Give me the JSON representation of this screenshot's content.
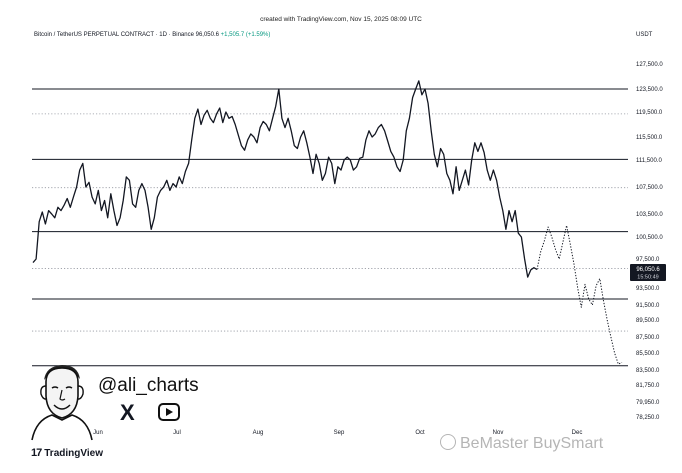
{
  "header": {
    "created_text": "created with TradingView.com, Nov 15, 2025 08:09 UTC",
    "symbol": "Bitcoin / TetherUS PERPETUAL CONTRACT · 1D · Binance",
    "last_price": "96,050.6",
    "change": "+1,505.7 (+1.59%)",
    "currency": "USDT"
  },
  "price_badge": {
    "price": "96,050.6",
    "countdown": "15:50:49",
    "color": "#131722"
  },
  "branding": {
    "handle": "@ali_charts",
    "x_icon_glyph": "X",
    "logo_text": "TradingView",
    "logo_mark": "17",
    "watermark": "BeMaster BuySmart"
  },
  "chart_data": {
    "type": "line",
    "ylim": [
      78250,
      129500
    ],
    "y_ticks": [
      {
        "value": 127500,
        "label": "127,500.0"
      },
      {
        "value": 123500,
        "label": "123,500.0"
      },
      {
        "value": 119500,
        "label": "119,500.0"
      },
      {
        "value": 115500,
        "label": "115,500.0"
      },
      {
        "value": 111500,
        "label": "111,500.0"
      },
      {
        "value": 107500,
        "label": "107,500.0"
      },
      {
        "value": 103500,
        "label": "103,500.0"
      },
      {
        "value": 100500,
        "label": "100,500.0"
      },
      {
        "value": 97500,
        "label": "97,500.0"
      },
      {
        "value": 93500,
        "label": "93,500.0"
      },
      {
        "value": 91500,
        "label": "91,500.0"
      },
      {
        "value": 89500,
        "label": "89,500.0"
      },
      {
        "value": 87500,
        "label": "87,500.0"
      },
      {
        "value": 85500,
        "label": "85,500.0"
      },
      {
        "value": 83500,
        "label": "83,500.0"
      },
      {
        "value": 81750,
        "label": "81,750.0"
      },
      {
        "value": 79950,
        "label": "79,950.0"
      },
      {
        "value": 78250,
        "label": "78,250.0"
      }
    ],
    "x_ticks": [
      {
        "day": 30,
        "label": "Jun"
      },
      {
        "day": 60,
        "label": "Jul"
      },
      {
        "day": 91,
        "label": "Aug"
      },
      {
        "day": 122,
        "label": "Sep"
      },
      {
        "day": 152,
        "label": "Oct"
      },
      {
        "day": 183,
        "label": "Nov"
      },
      {
        "day": 213,
        "label": "Dec"
      }
    ],
    "x_range": [
      0,
      240
    ],
    "levels": [
      {
        "value": 123500,
        "style": "solid"
      },
      {
        "value": 119200,
        "style": "dotted"
      },
      {
        "value": 111600,
        "style": "solid"
      },
      {
        "value": 107400,
        "style": "dotted"
      },
      {
        "value": 101200,
        "style": "solid"
      },
      {
        "value": 96200,
        "style": "dotted"
      },
      {
        "value": 92200,
        "style": "solid"
      },
      {
        "value": 88200,
        "style": "dotted"
      },
      {
        "value": 84000,
        "style": "solid"
      }
    ],
    "series": [
      {
        "style": "solid",
        "color": "#131722",
        "points": [
          [
            0,
            97000
          ],
          [
            1,
            97500
          ],
          [
            2,
            102500
          ],
          [
            3,
            103800
          ],
          [
            4,
            102200
          ],
          [
            5,
            104000
          ],
          [
            6,
            103500
          ],
          [
            7,
            103000
          ],
          [
            8,
            104500
          ],
          [
            9,
            104000
          ],
          [
            10,
            104800
          ],
          [
            11,
            105800
          ],
          [
            12,
            104500
          ],
          [
            13,
            106000
          ],
          [
            14,
            107500
          ],
          [
            15,
            110000
          ],
          [
            16,
            111000
          ],
          [
            17,
            107500
          ],
          [
            18,
            108200
          ],
          [
            19,
            106000
          ],
          [
            20,
            105000
          ],
          [
            21,
            107000
          ],
          [
            22,
            104000
          ],
          [
            23,
            105500
          ],
          [
            24,
            103000
          ],
          [
            25,
            106500
          ],
          [
            26,
            104000
          ],
          [
            27,
            102000
          ],
          [
            28,
            103000
          ],
          [
            29,
            105500
          ],
          [
            30,
            109000
          ],
          [
            31,
            108500
          ],
          [
            32,
            105000
          ],
          [
            33,
            104500
          ],
          [
            34,
            107000
          ],
          [
            35,
            108000
          ],
          [
            36,
            107000
          ],
          [
            37,
            104500
          ],
          [
            38,
            101500
          ],
          [
            39,
            103000
          ],
          [
            40,
            106000
          ],
          [
            41,
            107000
          ],
          [
            42,
            107500
          ],
          [
            43,
            108500
          ],
          [
            44,
            107000
          ],
          [
            45,
            108000
          ],
          [
            46,
            107500
          ],
          [
            47,
            109000
          ],
          [
            48,
            108000
          ],
          [
            49,
            109800
          ],
          [
            50,
            111000
          ],
          [
            51,
            115000
          ],
          [
            52,
            118500
          ],
          [
            53,
            120000
          ],
          [
            54,
            117500
          ],
          [
            55,
            119000
          ],
          [
            56,
            119800
          ],
          [
            57,
            118500
          ],
          [
            58,
            117800
          ],
          [
            59,
            119200
          ],
          [
            60,
            120200
          ],
          [
            61,
            117800
          ],
          [
            62,
            119500
          ],
          [
            63,
            118500
          ],
          [
            64,
            118800
          ],
          [
            65,
            117500
          ],
          [
            66,
            115800
          ],
          [
            67,
            114000
          ],
          [
            68,
            113200
          ],
          [
            69,
            115000
          ],
          [
            70,
            116000
          ],
          [
            71,
            115500
          ],
          [
            72,
            114500
          ],
          [
            73,
            117000
          ],
          [
            74,
            118000
          ],
          [
            75,
            117500
          ],
          [
            76,
            116500
          ],
          [
            77,
            118500
          ],
          [
            78,
            120500
          ],
          [
            79,
            123500
          ],
          [
            80,
            118500
          ],
          [
            81,
            117000
          ],
          [
            82,
            118500
          ],
          [
            83,
            116500
          ],
          [
            84,
            114000
          ],
          [
            85,
            113500
          ],
          [
            86,
            115500
          ],
          [
            87,
            116500
          ],
          [
            88,
            114500
          ],
          [
            89,
            112000
          ],
          [
            90,
            109500
          ],
          [
            91,
            112500
          ],
          [
            92,
            111000
          ],
          [
            93,
            108500
          ],
          [
            94,
            109500
          ],
          [
            95,
            112000
          ],
          [
            96,
            111000
          ],
          [
            97,
            108000
          ],
          [
            98,
            110500
          ],
          [
            99,
            110000
          ],
          [
            100,
            111500
          ],
          [
            101,
            112000
          ],
          [
            102,
            111500
          ],
          [
            103,
            110000
          ],
          [
            104,
            110500
          ],
          [
            105,
            111800
          ],
          [
            106,
            112000
          ],
          [
            107,
            115000
          ],
          [
            108,
            116500
          ],
          [
            109,
            115500
          ],
          [
            110,
            116000
          ],
          [
            111,
            117000
          ],
          [
            112,
            117500
          ],
          [
            113,
            116500
          ],
          [
            114,
            114800
          ],
          [
            115,
            113000
          ],
          [
            116,
            112000
          ],
          [
            117,
            110500
          ],
          [
            118,
            109800
          ],
          [
            119,
            111500
          ],
          [
            120,
            116500
          ],
          [
            121,
            118500
          ],
          [
            122,
            122000
          ],
          [
            123,
            123500
          ],
          [
            124,
            124800
          ],
          [
            125,
            122500
          ],
          [
            126,
            123500
          ],
          [
            127,
            121000
          ],
          [
            128,
            116500
          ],
          [
            129,
            112500
          ],
          [
            130,
            110500
          ],
          [
            131,
            113500
          ],
          [
            132,
            112500
          ],
          [
            133,
            109500
          ],
          [
            134,
            108500
          ],
          [
            135,
            106500
          ],
          [
            136,
            110500
          ],
          [
            137,
            107000
          ],
          [
            138,
            108500
          ],
          [
            139,
            110000
          ],
          [
            140,
            107800
          ],
          [
            141,
            111500
          ],
          [
            142,
            114500
          ],
          [
            143,
            113000
          ],
          [
            144,
            114500
          ],
          [
            145,
            112800
          ],
          [
            146,
            110000
          ],
          [
            147,
            108500
          ],
          [
            148,
            110000
          ],
          [
            149,
            108500
          ],
          [
            150,
            106000
          ],
          [
            151,
            104000
          ],
          [
            152,
            101500
          ],
          [
            153,
            104000
          ],
          [
            154,
            102500
          ],
          [
            155,
            104000
          ],
          [
            156,
            101000
          ],
          [
            157,
            100500
          ],
          [
            158,
            97500
          ],
          [
            159,
            95000
          ],
          [
            160,
            96000
          ],
          [
            161,
            96300
          ],
          [
            162,
            96050
          ]
        ]
      },
      {
        "style": "dotted",
        "color": "#131722",
        "points": [
          [
            162,
            96050
          ],
          [
            163,
            98500
          ],
          [
            164,
            100000
          ],
          [
            165,
            101800
          ],
          [
            166,
            100500
          ],
          [
            167,
            98800
          ],
          [
            168,
            97500
          ],
          [
            169,
            99800
          ],
          [
            170,
            102000
          ],
          [
            171,
            99500
          ],
          [
            172,
            96800
          ],
          [
            173,
            93500
          ],
          [
            174,
            91200
          ],
          [
            175,
            94000
          ],
          [
            176,
            92200
          ],
          [
            177,
            91500
          ],
          [
            178,
            93800
          ],
          [
            179,
            94800
          ],
          [
            180,
            92000
          ],
          [
            181,
            89500
          ],
          [
            182,
            87500
          ],
          [
            183,
            85500
          ],
          [
            184,
            84200
          ],
          [
            185,
            84400
          ]
        ]
      }
    ]
  }
}
